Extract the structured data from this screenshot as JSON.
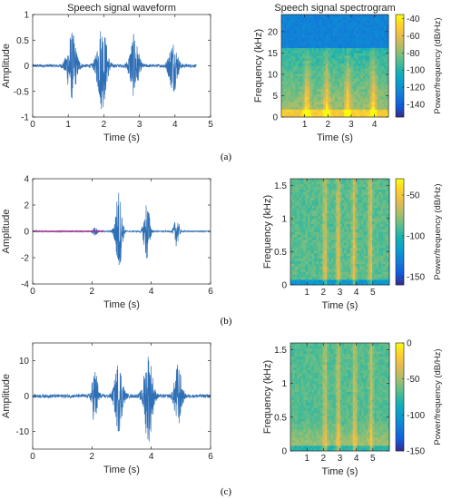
{
  "chart_data": [
    {
      "id": "a-wave",
      "type": "line",
      "title": "Speech signal waveform",
      "xlabel": "Time (s)",
      "ylabel": "Amplitude",
      "xlim": [
        0,
        5
      ],
      "ylim": [
        -1,
        1
      ],
      "xticks": [
        0,
        1,
        2,
        3,
        4,
        5
      ],
      "yticks": [
        -1,
        -0.5,
        0,
        0.5,
        1
      ],
      "xtick_labels": [
        "0",
        "1",
        "2",
        "3",
        "4",
        "5"
      ],
      "ytick_labels": [
        "-1",
        "-0.5",
        "0",
        "0.5",
        "1"
      ],
      "signal_end": 4.6,
      "noise_level": 0.03,
      "bursts": [
        {
          "center": 1.1,
          "width": 0.22,
          "amp": 0.65
        },
        {
          "center": 1.95,
          "width": 0.22,
          "amp": 0.85
        },
        {
          "center": 2.85,
          "width": 0.2,
          "amp": 0.6
        },
        {
          "center": 3.95,
          "width": 0.2,
          "amp": 0.5
        }
      ],
      "color": "#2f6fb5"
    },
    {
      "id": "a-spec",
      "type": "heatmap",
      "title": "Speech signal spectrogram",
      "xlabel": "Time (s)",
      "ylabel": "Frequency (kHz)",
      "colorbar_label": "Power/frequency (dB/Hz)",
      "xlim": [
        0,
        4.6
      ],
      "ylim": [
        0,
        24
      ],
      "xticks": [
        1,
        2,
        3,
        4
      ],
      "yticks": [
        0,
        5,
        10,
        15,
        20
      ],
      "xtick_labels": [
        "1",
        "2",
        "3",
        "4"
      ],
      "ytick_labels": [
        "0",
        "5",
        "10",
        "15",
        "20"
      ],
      "clim": [
        -155,
        -35
      ],
      "cticks": [
        -140,
        -120,
        -100,
        -80,
        -60,
        -40
      ],
      "ctick_labels": [
        "-140",
        "-120",
        "-100",
        "-80",
        "-60",
        "-40"
      ],
      "band_edge": 16,
      "band_db": -80,
      "upper_db": -130,
      "bursts": [
        1.1,
        1.95,
        2.85,
        3.95
      ]
    },
    {
      "id": "b-wave",
      "type": "line",
      "xlabel": "Time (s)",
      "ylabel": "Amplitude",
      "xlim": [
        0,
        6
      ],
      "ylim": [
        -4,
        4
      ],
      "xticks": [
        0,
        2,
        4,
        6
      ],
      "yticks": [
        -4,
        -2,
        0,
        2,
        4
      ],
      "xtick_labels": [
        "0",
        "2",
        "4",
        "6"
      ],
      "ytick_labels": [
        "-4",
        "-2",
        "0",
        "2",
        "4"
      ],
      "signal_end": 6,
      "noise_level": 0.05,
      "bursts": [
        {
          "center": 2.1,
          "width": 0.12,
          "amp": 0.3
        },
        {
          "center": 2.9,
          "width": 0.18,
          "amp": 3.2
        },
        {
          "center": 3.85,
          "width": 0.16,
          "amp": 2.4
        },
        {
          "center": 4.85,
          "width": 0.14,
          "amp": 1.1
        }
      ],
      "color": "#2f6fb5",
      "accent_color": "#b3358f"
    },
    {
      "id": "b-spec",
      "type": "heatmap",
      "xlabel": "Time (s)",
      "ylabel": "Frequency (kHz)",
      "colorbar_label": "Power/frequency (dB/Hz)",
      "xlim": [
        0,
        6
      ],
      "ylim": [
        0,
        1.6
      ],
      "xticks": [
        1,
        2,
        3,
        4,
        5
      ],
      "yticks": [
        0,
        0.5,
        1,
        1.5
      ],
      "xtick_labels": [
        "1",
        "2",
        "3",
        "4",
        "5"
      ],
      "ytick_labels": [
        "0",
        "0.5",
        "1",
        "1.5"
      ],
      "clim": [
        -160,
        -30
      ],
      "cticks": [
        -150,
        -100,
        -50
      ],
      "ctick_labels": [
        "-150",
        "-100",
        "-50"
      ],
      "base_db": -95,
      "bursts": [
        2.1,
        2.9,
        3.85,
        4.85
      ]
    },
    {
      "id": "c-wave",
      "type": "line",
      "xlabel": "Time (s)",
      "ylabel": "Amplitude",
      "xlim": [
        0,
        6
      ],
      "ylim": [
        -15,
        15
      ],
      "xticks": [
        0,
        2,
        4,
        6
      ],
      "yticks": [
        -10,
        0,
        10
      ],
      "xtick_labels": [
        "0",
        "2",
        "4",
        "6"
      ],
      "ytick_labels": [
        "-10",
        "0",
        "10"
      ],
      "signal_end": 6,
      "noise_level": 0.5,
      "bursts": [
        {
          "center": 2.1,
          "width": 0.16,
          "amp": 8
        },
        {
          "center": 2.9,
          "width": 0.22,
          "amp": 10
        },
        {
          "center": 3.9,
          "width": 0.24,
          "amp": 13
        },
        {
          "center": 4.9,
          "width": 0.2,
          "amp": 9
        }
      ],
      "color": "#2f6fb5"
    },
    {
      "id": "c-spec",
      "type": "heatmap",
      "xlabel": "Time (s)",
      "ylabel": "Frequency (kHz)",
      "colorbar_label": "Power/frequency (dB/Hz)",
      "xlim": [
        0,
        6
      ],
      "ylim": [
        0,
        1.6
      ],
      "xticks": [
        1,
        2,
        3,
        4,
        5
      ],
      "yticks": [
        0,
        0.5,
        1,
        1.5
      ],
      "xtick_labels": [
        "1",
        "2",
        "3",
        "4",
        "5"
      ],
      "ytick_labels": [
        "0",
        "0.5",
        "1",
        "1.5"
      ],
      "clim": [
        -150,
        0
      ],
      "cticks": [
        -150,
        -100,
        -50,
        0
      ],
      "ctick_labels": [
        "-150",
        "-100",
        "-50",
        "0"
      ],
      "base_db": -75,
      "bursts": [
        2.1,
        2.9,
        3.9,
        4.9
      ]
    }
  ],
  "panel_labels": [
    "(a)",
    "(b)",
    "(c)"
  ]
}
